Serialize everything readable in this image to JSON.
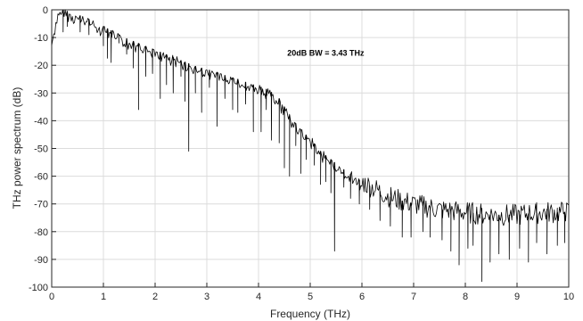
{
  "chart_data": {
    "type": "line",
    "xlabel": "Frequency (THz)",
    "ylabel": "THz power spectrum (dB)",
    "xlim": [
      0,
      10
    ],
    "ylim": [
      -100,
      0
    ],
    "xticks": [
      0,
      1,
      2,
      3,
      4,
      5,
      6,
      7,
      8,
      9,
      10
    ],
    "yticks": [
      0,
      -10,
      -20,
      -30,
      -40,
      -50,
      -60,
      -70,
      -80,
      -90,
      -100
    ],
    "grid": true,
    "legend": "none",
    "line_color": "#000000",
    "annotations": [
      {
        "text": "20dB BW = 3.43 THz",
        "x": 5.3,
        "y": -16.5
      }
    ],
    "series": [
      {
        "envelope": [
          [
            0.0,
            -11
          ],
          [
            0.05,
            -6
          ],
          [
            0.1,
            -2
          ],
          [
            0.2,
            0
          ],
          [
            0.3,
            -0.5
          ],
          [
            0.4,
            -1
          ],
          [
            0.6,
            -2.5
          ],
          [
            0.8,
            -4
          ],
          [
            1.0,
            -6
          ],
          [
            1.2,
            -8
          ],
          [
            1.4,
            -10
          ],
          [
            1.6,
            -11.5
          ],
          [
            1.8,
            -13
          ],
          [
            2.0,
            -14.5
          ],
          [
            2.2,
            -16
          ],
          [
            2.4,
            -17.5
          ],
          [
            2.6,
            -19
          ],
          [
            2.8,
            -20.5
          ],
          [
            3.0,
            -21.5
          ],
          [
            3.2,
            -22.5
          ],
          [
            3.4,
            -24
          ],
          [
            3.6,
            -25
          ],
          [
            3.8,
            -26.5
          ],
          [
            4.0,
            -27.5
          ],
          [
            4.2,
            -29
          ],
          [
            4.4,
            -32
          ],
          [
            4.6,
            -38
          ],
          [
            4.8,
            -43
          ],
          [
            5.0,
            -46.5
          ],
          [
            5.2,
            -51
          ],
          [
            5.4,
            -54
          ],
          [
            5.6,
            -57
          ],
          [
            5.8,
            -59.5
          ],
          [
            6.0,
            -62
          ],
          [
            6.3,
            -65
          ],
          [
            6.6,
            -68
          ],
          [
            7.0,
            -70
          ],
          [
            7.5,
            -72
          ],
          [
            8.0,
            -73
          ],
          [
            8.5,
            -74
          ],
          [
            9.0,
            -74
          ],
          [
            9.5,
            -73
          ],
          [
            10.0,
            -73
          ]
        ],
        "dips": [
          [
            0.22,
            -8
          ],
          [
            0.3,
            -6
          ],
          [
            0.55,
            -8
          ],
          [
            0.72,
            -9
          ],
          [
            1.0,
            -13
          ],
          [
            1.08,
            -17.5
          ],
          [
            1.15,
            -19
          ],
          [
            1.3,
            -12
          ],
          [
            1.45,
            -16
          ],
          [
            1.58,
            -21
          ],
          [
            1.68,
            -36
          ],
          [
            1.82,
            -24
          ],
          [
            1.95,
            -23
          ],
          [
            2.1,
            -32
          ],
          [
            2.22,
            -27
          ],
          [
            2.35,
            -30
          ],
          [
            2.5,
            -24
          ],
          [
            2.58,
            -33
          ],
          [
            2.65,
            -51
          ],
          [
            2.78,
            -30
          ],
          [
            2.9,
            -37
          ],
          [
            3.05,
            -28
          ],
          [
            3.2,
            -42
          ],
          [
            3.35,
            -32
          ],
          [
            3.5,
            -36
          ],
          [
            3.6,
            -37
          ],
          [
            3.75,
            -34
          ],
          [
            3.9,
            -44
          ],
          [
            4.05,
            -44
          ],
          [
            4.15,
            -36
          ],
          [
            4.25,
            -47
          ],
          [
            4.4,
            -48
          ],
          [
            4.5,
            -57
          ],
          [
            4.6,
            -60
          ],
          [
            4.72,
            -49
          ],
          [
            4.82,
            -59
          ],
          [
            4.92,
            -54
          ],
          [
            5.08,
            -56
          ],
          [
            5.2,
            -63
          ],
          [
            5.3,
            -62
          ],
          [
            5.4,
            -66
          ],
          [
            5.47,
            -87
          ],
          [
            5.65,
            -64
          ],
          [
            5.78,
            -68
          ],
          [
            5.95,
            -70
          ],
          [
            6.15,
            -72
          ],
          [
            6.35,
            -76
          ],
          [
            6.55,
            -78
          ],
          [
            6.78,
            -82
          ],
          [
            6.95,
            -82
          ],
          [
            7.18,
            -80
          ],
          [
            7.32,
            -82
          ],
          [
            7.55,
            -83
          ],
          [
            7.72,
            -87
          ],
          [
            7.88,
            -92
          ],
          [
            8.05,
            -86
          ],
          [
            8.15,
            -85
          ],
          [
            8.32,
            -98
          ],
          [
            8.48,
            -91
          ],
          [
            8.65,
            -88
          ],
          [
            8.85,
            -90
          ],
          [
            9.05,
            -86
          ],
          [
            9.22,
            -91
          ],
          [
            9.38,
            -84
          ],
          [
            9.58,
            -88
          ],
          [
            9.78,
            -85
          ],
          [
            9.92,
            -84
          ]
        ],
        "sample_step": 0.02,
        "noise_amplitude_db": 4
      }
    ]
  }
}
